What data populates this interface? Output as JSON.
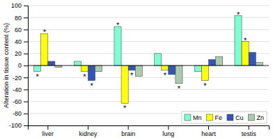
{
  "chart_data": {
    "type": "bar",
    "categories": [
      "liver",
      "kidney",
      "brain",
      "lung",
      "heart",
      "testis"
    ],
    "series": [
      {
        "name": "Mn",
        "color": "#7fffd4",
        "values": [
          -10,
          7,
          65,
          20,
          -10,
          83
        ]
      },
      {
        "name": "Fe",
        "color": "#ffff00",
        "values": [
          53,
          -10,
          -63,
          -8,
          -25,
          40
        ]
      },
      {
        "name": "Cu",
        "color": "#3355bb",
        "values": [
          7,
          -25,
          -8,
          -15,
          10,
          22
        ]
      },
      {
        "name": "Zn",
        "color": "#aaccaa",
        "values": [
          -3,
          -10,
          -18,
          -30,
          15,
          5
        ]
      }
    ],
    "annotations": [
      {
        "text": "*",
        "category": "liver",
        "series": "Mn"
      },
      {
        "text": "*",
        "category": "liver",
        "series": "Fe"
      },
      {
        "text": "*",
        "category": "kidney",
        "series": "Fe"
      },
      {
        "text": "*",
        "category": "kidney",
        "series": "Cu"
      },
      {
        "text": "*",
        "category": "brain",
        "series": "Mn"
      },
      {
        "text": "*",
        "category": "brain",
        "series": "Fe"
      },
      {
        "text": "*",
        "category": "brain",
        "series": "Cu"
      },
      {
        "text": "*",
        "category": "lung",
        "series": "Fe"
      },
      {
        "text": "*",
        "category": "lung",
        "series": "Zn"
      },
      {
        "text": "*",
        "category": "heart",
        "series": "Fe"
      },
      {
        "text": "*",
        "category": "testis",
        "series": "Mn"
      },
      {
        "text": "*",
        "category": "testis",
        "series": "Fe"
      }
    ],
    "ylabel": "Alteration in tissue content (%)",
    "ylim": [
      -100,
      100
    ],
    "yticks": [
      -100,
      -80,
      -60,
      -40,
      -20,
      0,
      20,
      40,
      60,
      80,
      100
    ],
    "grid": true,
    "legend": "lower right"
  }
}
